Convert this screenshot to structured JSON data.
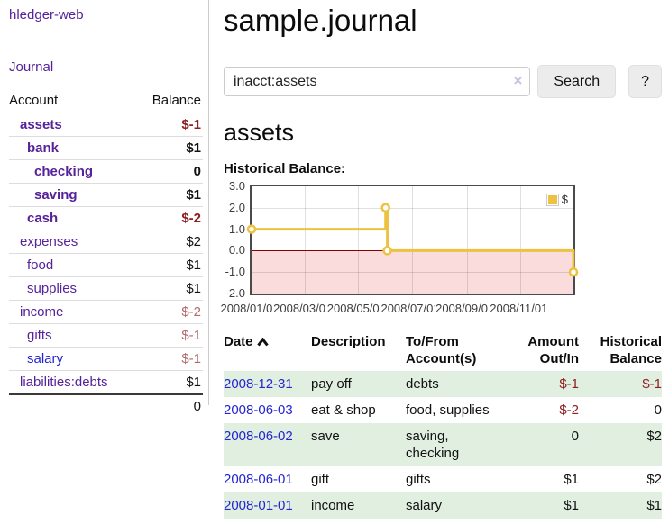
{
  "app": {
    "title": "hledger-web"
  },
  "colors": {
    "purple": "#552299",
    "blue": "#2525d2",
    "negative-strong": "#8e2020",
    "negative-dim": "#b06a6a",
    "stripe-green": "#e1efe1",
    "chart-line": "#edc240",
    "chart-negative-fill": "#fbdcdc",
    "chart-zero-line": "#8b0000",
    "plot-border": "#4a4a4a",
    "button-bg": "#ececec"
  },
  "sidebar": {
    "journal_label": "Journal",
    "table": {
      "headers": [
        "Account",
        "Balance"
      ],
      "rows": [
        {
          "account": "assets",
          "balance": "$-1",
          "depth": 1,
          "matched": true,
          "balance_class": "neg",
          "link": "purple"
        },
        {
          "account": "bank",
          "balance": "$1",
          "depth": 2,
          "matched": true,
          "balance_class": "",
          "link": "purple"
        },
        {
          "account": "checking",
          "balance": "0",
          "depth": 3,
          "matched": true,
          "balance_class": "",
          "link": "purple"
        },
        {
          "account": "saving",
          "balance": "$1",
          "depth": 3,
          "matched": true,
          "balance_class": "",
          "link": "purple"
        },
        {
          "account": "cash",
          "balance": "$-2",
          "depth": 2,
          "matched": true,
          "balance_class": "neg",
          "link": "purple"
        },
        {
          "account": "expenses",
          "balance": "$2",
          "depth": 1,
          "matched": false,
          "balance_class": "",
          "link": "purple"
        },
        {
          "account": "food",
          "balance": "$1",
          "depth": 2,
          "matched": false,
          "balance_class": "",
          "link": "purple"
        },
        {
          "account": "supplies",
          "balance": "$1",
          "depth": 2,
          "matched": false,
          "balance_class": "",
          "link": "purple"
        },
        {
          "account": "income",
          "balance": "$-2",
          "depth": 1,
          "matched": false,
          "balance_class": "negdim",
          "link": "purple"
        },
        {
          "account": "gifts",
          "balance": "$-1",
          "depth": 2,
          "matched": false,
          "balance_class": "negdim",
          "link": "purple"
        },
        {
          "account": "salary",
          "balance": "$-1",
          "depth": 2,
          "matched": false,
          "balance_class": "negdim",
          "link": "blue"
        },
        {
          "account": "liabilities:debts",
          "balance": "$1",
          "depth": 1,
          "matched": false,
          "balance_class": "",
          "link": "purple"
        }
      ],
      "total": "0"
    }
  },
  "main": {
    "title": "sample.journal",
    "search": {
      "value": "inacct:assets",
      "clear_icon": "×",
      "button_label": "Search",
      "help_label": "?"
    },
    "account_heading": "assets",
    "chart_label": "Historical Balance:"
  },
  "chart_data": {
    "type": "line",
    "title": "Historical Balance of assets",
    "ylim": [
      -2.0,
      3.0
    ],
    "xlim_days": [
      0,
      365
    ],
    "grid": true,
    "legend_position": "top-right",
    "y_ticks": [
      {
        "v": 3.0,
        "label": "3.0"
      },
      {
        "v": 2.0,
        "label": "2.0"
      },
      {
        "v": 1.0,
        "label": "1.0"
      },
      {
        "v": 0.0,
        "label": "0.0"
      },
      {
        "v": -1.0,
        "label": "-1.0"
      },
      {
        "v": -2.0,
        "label": "-2.0"
      }
    ],
    "x_ticks": [
      {
        "day": 0,
        "label": "2008/01/01"
      },
      {
        "day": 60,
        "label": "2008/03/01"
      },
      {
        "day": 121,
        "label": "2008/05/01"
      },
      {
        "day": 182,
        "label": "2008/07/01"
      },
      {
        "day": 244,
        "label": "2008/09/01"
      },
      {
        "day": 305,
        "label": "2008/11/01"
      }
    ],
    "series": [
      {
        "name": "$",
        "style": "step",
        "data_points": [
          {
            "date": "2008-01-01",
            "day": 0,
            "value": 1
          },
          {
            "date": "2008-06-01",
            "day": 152,
            "value": 2
          },
          {
            "date": "2008-06-02",
            "day": 153,
            "value": 2
          },
          {
            "date": "2008-06-03",
            "day": 154,
            "value": 0
          },
          {
            "date": "2008-12-31",
            "day": 365,
            "value": -1
          }
        ],
        "line_points": [
          [
            0,
            1
          ],
          [
            152,
            1
          ],
          [
            152,
            2
          ],
          [
            154,
            2
          ],
          [
            154,
            0
          ],
          [
            365,
            0
          ],
          [
            365,
            -1
          ]
        ],
        "marker_points": [
          [
            0,
            1
          ],
          [
            152,
            2
          ],
          [
            154,
            0
          ],
          [
            365,
            -1
          ]
        ]
      }
    ]
  },
  "register": {
    "headers": {
      "date": "Date",
      "description": "Description",
      "accounts": "To/From Account(s)",
      "amount": "Amount Out/In",
      "balance": "Historical Balance"
    },
    "rows": [
      {
        "date": "2008-12-31",
        "description": "pay off",
        "accounts": "debts",
        "amount": "$-1",
        "amount_neg": true,
        "balance": "$-1",
        "balance_neg": true
      },
      {
        "date": "2008-06-03",
        "description": "eat & shop",
        "accounts": "food, supplies",
        "amount": "$-2",
        "amount_neg": true,
        "balance": "0",
        "balance_neg": false
      },
      {
        "date": "2008-06-02",
        "description": "save",
        "accounts": "saving, checking",
        "amount": "0",
        "amount_neg": false,
        "balance": "$2",
        "balance_neg": false
      },
      {
        "date": "2008-06-01",
        "description": "gift",
        "accounts": "gifts",
        "amount": "$1",
        "amount_neg": false,
        "balance": "$2",
        "balance_neg": false
      },
      {
        "date": "2008-01-01",
        "description": "income",
        "accounts": "salary",
        "amount": "$1",
        "amount_neg": false,
        "balance": "$1",
        "balance_neg": false
      }
    ]
  }
}
